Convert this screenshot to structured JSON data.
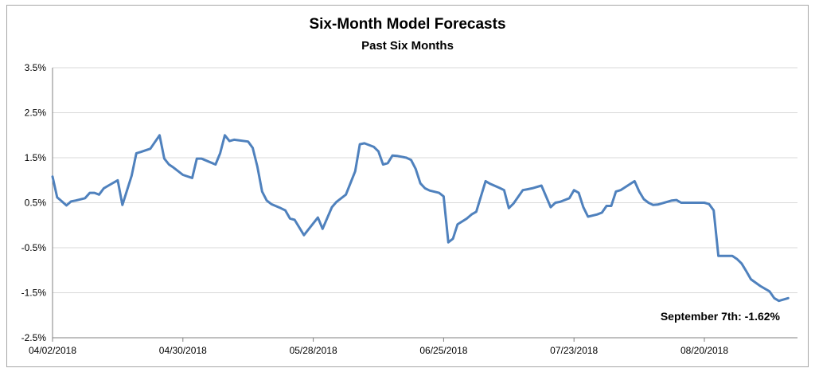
{
  "chart_data": {
    "type": "line",
    "title": "Six-Month Model Forecasts",
    "subtitle": "Past Six Months",
    "xlabel": "",
    "ylabel": "",
    "ylim": [
      -2.5,
      3.5
    ],
    "yticks": [
      3.5,
      2.5,
      1.5,
      0.5,
      -0.5,
      -1.5,
      -2.5
    ],
    "ytick_labels": [
      "3.5%",
      "2.5%",
      "1.5%",
      "0.5%",
      "-0.5%",
      "-1.5%",
      "-2.5%"
    ],
    "xtick_labels": [
      "04/02/2018",
      "04/30/2018",
      "05/28/2018",
      "06/25/2018",
      "07/23/2018",
      "08/20/2018"
    ],
    "xtick_days": [
      0,
      28,
      56,
      84,
      112,
      140
    ],
    "x_start": "2018-04-02",
    "grid": true,
    "series_color": "#4f81bd",
    "annotation": "September 7th:  -1.62%",
    "series": [
      {
        "name": "",
        "points": [
          [
            0,
            1.08
          ],
          [
            1,
            0.62
          ],
          [
            2,
            0.53
          ],
          [
            3,
            0.44
          ],
          [
            4,
            0.53
          ],
          [
            5,
            0.55
          ],
          [
            7,
            0.6
          ],
          [
            8,
            0.72
          ],
          [
            9,
            0.72
          ],
          [
            10,
            0.68
          ],
          [
            11,
            0.82
          ],
          [
            12,
            0.88
          ],
          [
            14,
            1.0
          ],
          [
            15,
            0.45
          ],
          [
            17,
            1.1
          ],
          [
            18,
            1.6
          ],
          [
            19,
            1.63
          ],
          [
            21,
            1.7
          ],
          [
            23,
            2.0
          ],
          [
            24,
            1.48
          ],
          [
            25,
            1.35
          ],
          [
            26,
            1.28
          ],
          [
            28,
            1.12
          ],
          [
            30,
            1.05
          ],
          [
            31,
            1.48
          ],
          [
            32,
            1.48
          ],
          [
            35,
            1.35
          ],
          [
            36,
            1.6
          ],
          [
            37,
            2.0
          ],
          [
            38,
            1.87
          ],
          [
            39,
            1.9
          ],
          [
            42,
            1.86
          ],
          [
            43,
            1.72
          ],
          [
            44,
            1.3
          ],
          [
            45,
            0.75
          ],
          [
            46,
            0.55
          ],
          [
            47,
            0.47
          ],
          [
            49,
            0.38
          ],
          [
            50,
            0.33
          ],
          [
            51,
            0.15
          ],
          [
            52,
            0.12
          ],
          [
            54,
            -0.22
          ],
          [
            57,
            0.17
          ],
          [
            58,
            -0.08
          ],
          [
            60,
            0.4
          ],
          [
            61,
            0.52
          ],
          [
            63,
            0.68
          ],
          [
            65,
            1.2
          ],
          [
            66,
            1.8
          ],
          [
            67,
            1.82
          ],
          [
            69,
            1.74
          ],
          [
            70,
            1.64
          ],
          [
            71,
            1.35
          ],
          [
            72,
            1.38
          ],
          [
            73,
            1.55
          ],
          [
            74,
            1.54
          ],
          [
            76,
            1.5
          ],
          [
            77,
            1.45
          ],
          [
            78,
            1.25
          ],
          [
            79,
            0.93
          ],
          [
            80,
            0.82
          ],
          [
            81,
            0.77
          ],
          [
            83,
            0.72
          ],
          [
            84,
            0.64
          ],
          [
            85,
            -0.38
          ],
          [
            86,
            -0.3
          ],
          [
            87,
            0.02
          ],
          [
            89,
            0.15
          ],
          [
            90,
            0.24
          ],
          [
            91,
            0.3
          ],
          [
            93,
            0.98
          ],
          [
            94,
            0.92
          ],
          [
            96,
            0.83
          ],
          [
            97,
            0.78
          ],
          [
            98,
            0.38
          ],
          [
            99,
            0.48
          ],
          [
            101,
            0.78
          ],
          [
            102,
            0.8
          ],
          [
            103,
            0.82
          ],
          [
            105,
            0.88
          ],
          [
            107,
            0.4
          ],
          [
            108,
            0.5
          ],
          [
            109,
            0.52
          ],
          [
            110,
            0.56
          ],
          [
            111,
            0.6
          ],
          [
            112,
            0.78
          ],
          [
            113,
            0.72
          ],
          [
            114,
            0.4
          ],
          [
            115,
            0.19
          ],
          [
            117,
            0.24
          ],
          [
            118,
            0.28
          ],
          [
            119,
            0.43
          ],
          [
            120,
            0.43
          ],
          [
            121,
            0.75
          ],
          [
            122,
            0.78
          ],
          [
            125,
            0.98
          ],
          [
            126,
            0.75
          ],
          [
            127,
            0.58
          ],
          [
            128,
            0.5
          ],
          [
            129,
            0.45
          ],
          [
            130,
            0.46
          ],
          [
            133,
            0.55
          ],
          [
            134,
            0.56
          ],
          [
            135,
            0.5
          ],
          [
            139,
            0.5
          ],
          [
            140,
            0.5
          ],
          [
            141,
            0.47
          ],
          [
            142,
            0.33
          ],
          [
            143,
            -0.68
          ],
          [
            145,
            -0.68
          ],
          [
            146,
            -0.68
          ],
          [
            147,
            -0.75
          ],
          [
            148,
            -0.85
          ],
          [
            149,
            -1.02
          ],
          [
            150,
            -1.2
          ],
          [
            152,
            -1.35
          ],
          [
            154,
            -1.47
          ],
          [
            155,
            -1.62
          ],
          [
            156,
            -1.68
          ],
          [
            158,
            -1.62
          ]
        ]
      }
    ]
  }
}
